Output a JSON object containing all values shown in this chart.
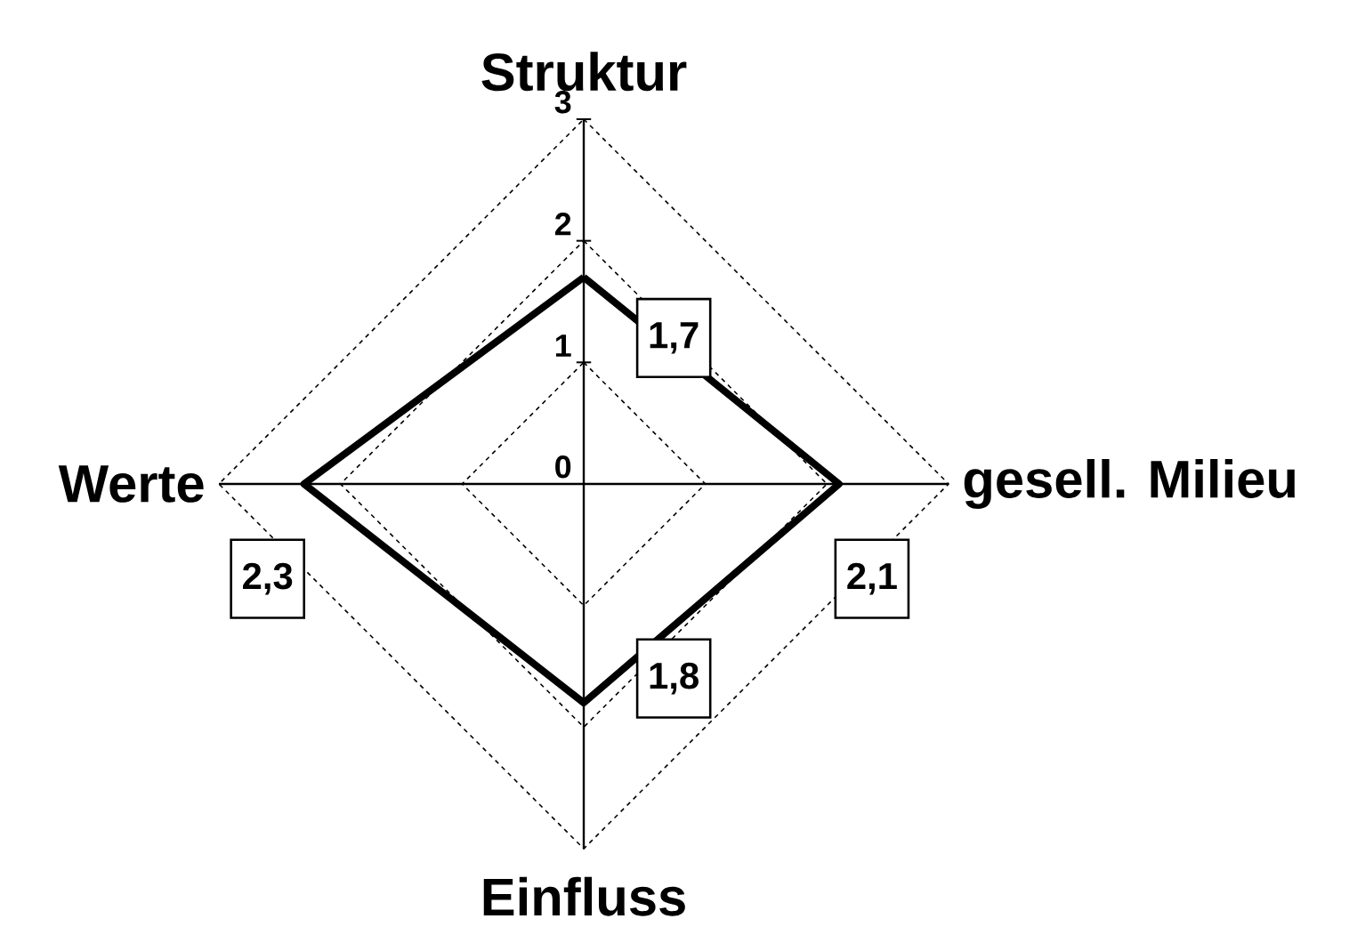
{
  "chart_data": {
    "type": "radar",
    "categories": [
      "Struktur",
      "gesell. Milieu",
      "Einfluss",
      "Werte"
    ],
    "series": [
      {
        "color": "#000000",
        "values": [
          1.7,
          2.1,
          1.8,
          2.3
        ],
        "value_labels": [
          "1,7",
          "2,1",
          "1,8",
          "2,3"
        ]
      }
    ],
    "ylim": [
      0,
      3
    ],
    "yticks": [
      0,
      1,
      2,
      3
    ],
    "grid": true
  }
}
